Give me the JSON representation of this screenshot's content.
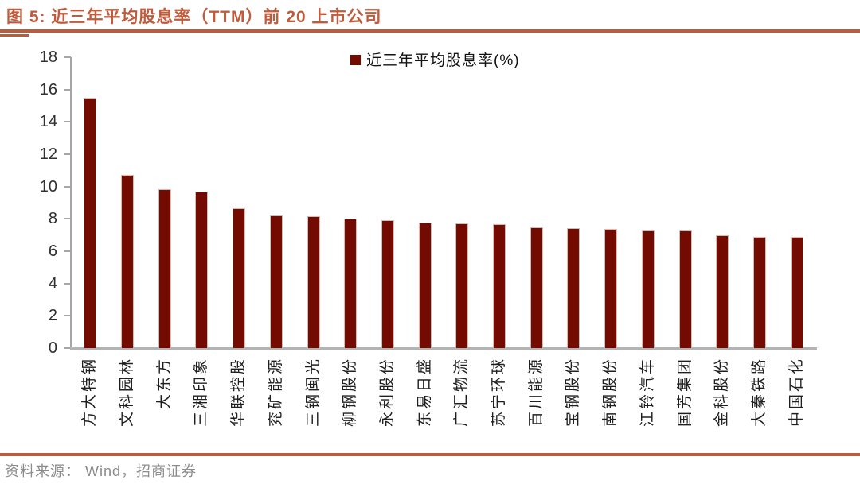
{
  "page": {
    "title": "图 5: 近三年平均股息率（TTM）前 20 上市公司",
    "source_note": "资料来源： Wind，招商证券"
  },
  "colors": {
    "accent_brick_red": "#BE5A3C",
    "bar_fill": "#730B00",
    "axis_gray": "#A6A6A6",
    "source_text_gray": "#8C8C8C"
  },
  "chart_data": {
    "type": "bar",
    "title": "近三年平均股息率（TTM）前 20 上市公司",
    "legend": [
      "近三年平均股息率(%)"
    ],
    "legend_position": "top-center",
    "grid": false,
    "xlabel": "",
    "ylabel": "",
    "ylim": [
      0,
      18
    ],
    "ytick_step": 2,
    "categories": [
      "方大特钢",
      "文科园林",
      "大东方",
      "三湘印象",
      "华联控股",
      "兖矿能源",
      "三钢闽光",
      "柳钢股份",
      "永利股份",
      "东易日盛",
      "广汇物流",
      "苏宁环球",
      "百川能源",
      "宝钢股份",
      "南钢股份",
      "江铃汽车",
      "国芳集团",
      "金科股份",
      "大秦铁路",
      "中国石化"
    ],
    "values": [
      15.5,
      10.7,
      9.85,
      9.7,
      8.65,
      8.2,
      8.15,
      8.0,
      7.9,
      7.75,
      7.7,
      7.65,
      7.5,
      7.45,
      7.4,
      7.3,
      7.3,
      7.0,
      6.9,
      6.9
    ]
  }
}
